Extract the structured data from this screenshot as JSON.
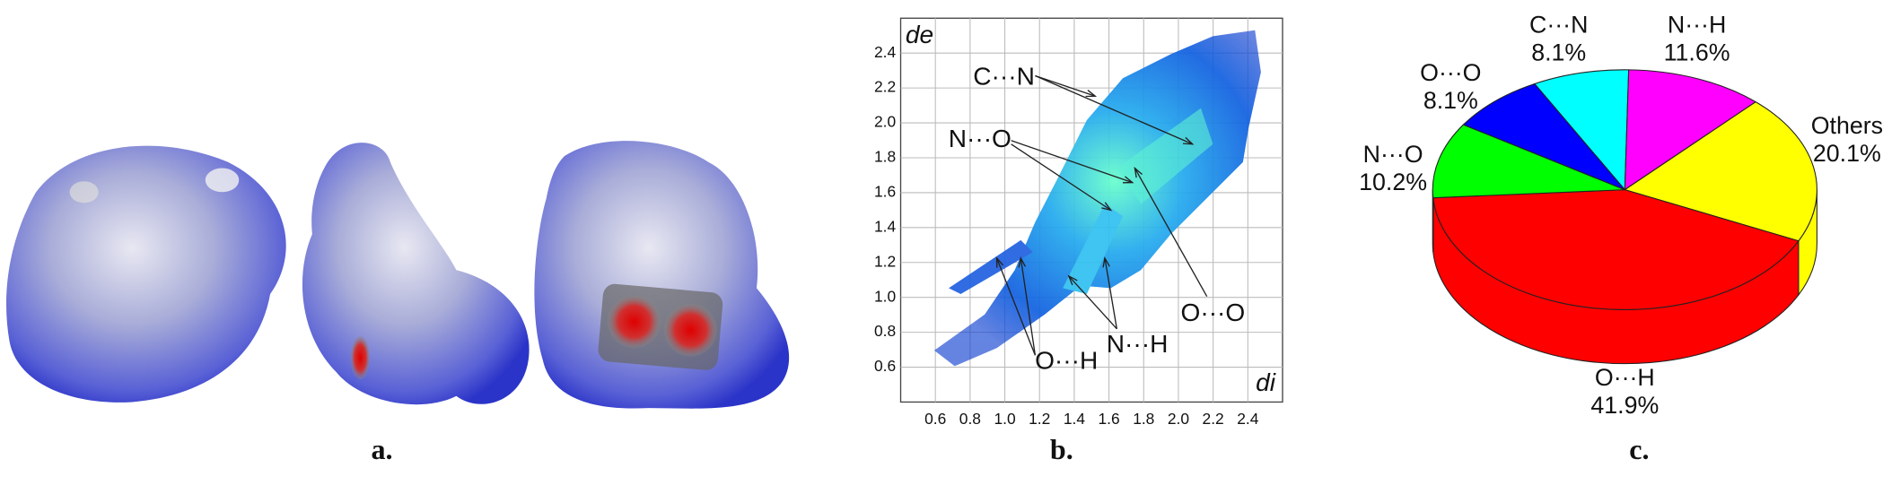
{
  "panel_labels": [
    "a.",
    "b.",
    "c."
  ],
  "chart_data": [
    {
      "type": "fingerprint",
      "xlabel": "di",
      "ylabel": "de",
      "xlim": [
        0.4,
        2.6
      ],
      "ylim": [
        0.4,
        2.6
      ],
      "xticks": [
        0.6,
        0.8,
        {
          "value": 1,
          "label": "1.0"
        },
        1.2,
        1.4,
        1.6,
        1.8,
        {
          "value": 2,
          "label": "2.0"
        },
        2.2,
        2.4
      ],
      "yticks": [
        0.6,
        0.8,
        {
          "value": 1,
          "label": "1.0"
        },
        1.2,
        1.4,
        1.6,
        1.8,
        {
          "value": 2,
          "label": "2.0"
        },
        2.2,
        2.4
      ],
      "grid": true,
      "annotations": [
        "C···N",
        "N···O",
        "O···O",
        "N···H",
        "O···H"
      ]
    },
    {
      "type": "pie3d",
      "categories": [
        "C···N",
        "N···H",
        "Others",
        "O···H",
        "N···O",
        "O···O"
      ],
      "values": [
        8.1,
        11.6,
        20.1,
        41.9,
        10.2,
        8.1
      ],
      "value_labels": [
        "8.1%",
        "11.6%",
        "20.1%",
        "41.9%",
        "10.2%",
        "8.1%"
      ],
      "colors": [
        "#00ffff",
        "#ff00ff",
        "#ffff00",
        "#ff0000",
        "#00ff00",
        "#0000ff"
      ]
    }
  ]
}
